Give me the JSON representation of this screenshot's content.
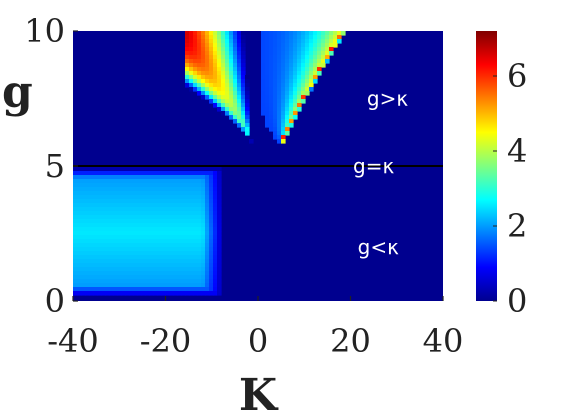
{
  "chart_data": {
    "type": "heatmap",
    "xlabel": "K",
    "ylabel": "g",
    "xlim": [
      -40,
      40
    ],
    "ylim": [
      0,
      10
    ],
    "x_ticks": [
      "-40",
      "-20",
      "0",
      "20",
      "40"
    ],
    "y_ticks": [
      "0",
      "5",
      "10"
    ],
    "colorbar": {
      "range": [
        0,
        7.2
      ],
      "ticks": [
        "0",
        "2",
        "4",
        "6"
      ],
      "colormap": "jet"
    },
    "annotations": [
      {
        "text": "g>κ",
        "x": 28,
        "y": 7.5
      },
      {
        "text": "g=κ",
        "x": 25,
        "y": 5.0
      },
      {
        "text": "g<κ",
        "x": 26,
        "y": 2.0
      }
    ],
    "boundary_line": {
      "y": 5
    },
    "regions": [
      {
        "name": "upper-left",
        "x_range": [
          -16,
          -1.5
        ],
        "y_range": [
          5.9,
          10
        ],
        "vertex_x": -1.5,
        "vertex_y": 5.9,
        "peak_value": 7.2
      },
      {
        "name": "upper-right",
        "x_range": [
          0.5,
          16
        ],
        "y_range": [
          5.9,
          10
        ],
        "vertex_x": 5.0,
        "vertex_y": 5.9,
        "peak_value": 5.0
      },
      {
        "name": "lower-left",
        "x_range": [
          -40,
          -8
        ],
        "y_range": [
          0.2,
          4.9
        ],
        "peak_value": 2.6
      }
    ],
    "background_value": 0,
    "colors": {
      "background": "#00008f",
      "divider": "#000000"
    }
  }
}
